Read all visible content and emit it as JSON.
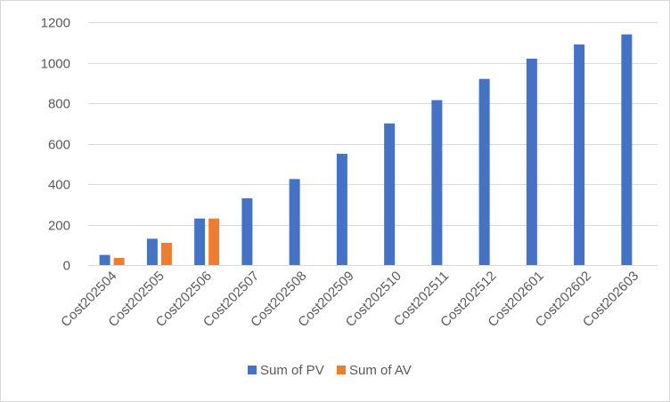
{
  "chart_data": {
    "type": "bar",
    "categories": [
      "Cost202504",
      "Cost202505",
      "Cost202506",
      "Cost202507",
      "Cost202508",
      "Cost202509",
      "Cost202510",
      "Cost202511",
      "Cost202512",
      "Cost202601",
      "Cost202602",
      "Cost202603"
    ],
    "series": [
      {
        "name": "Sum of PV",
        "color": "#4472C4",
        "values": [
          50,
          130,
          230,
          330,
          425,
          550,
          700,
          815,
          920,
          1020,
          1090,
          1140
        ]
      },
      {
        "name": "Sum of AV",
        "color": "#ED7D31",
        "values": [
          35,
          110,
          230,
          null,
          null,
          null,
          null,
          null,
          null,
          null,
          null,
          null
        ]
      }
    ],
    "ylim": [
      0,
      1200
    ],
    "yticks": [
      0,
      200,
      400,
      600,
      800,
      1000,
      1200
    ],
    "title": "",
    "xlabel": "",
    "ylabel": "",
    "grid": true,
    "legend_position": "bottom"
  }
}
